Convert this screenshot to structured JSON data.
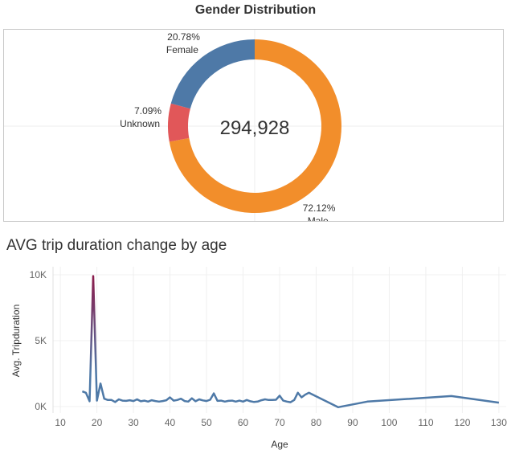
{
  "chart_data": [
    {
      "type": "pie",
      "title": "Gender Distribution",
      "center_label": "294,928",
      "slices": [
        {
          "name": "Male",
          "percent_label": "72.12%",
          "value": 72.12,
          "color": "#F28E2B"
        },
        {
          "name": "Unknown",
          "percent_label": "7.09%",
          "value": 7.09,
          "color": "#E15759"
        },
        {
          "name": "Female",
          "percent_label": "20.78%",
          "value": 20.78,
          "color": "#4E79A7"
        }
      ]
    },
    {
      "type": "line",
      "title": "AVG trip duration change by age",
      "xlabel": "Age",
      "ylabel": "Avg. Tripduration",
      "xlim": [
        8,
        132
      ],
      "ylim": [
        0,
        10000
      ],
      "x_ticks": [
        10,
        20,
        30,
        40,
        50,
        60,
        70,
        80,
        90,
        100,
        110,
        120,
        130
      ],
      "x_tick_labels": [
        "10",
        "20",
        "30",
        "40",
        "50",
        "60",
        "70",
        "80",
        "90",
        "100",
        "110",
        "120",
        "130"
      ],
      "y_ticks": [
        0,
        5000,
        10000
      ],
      "y_tick_labels": [
        "0K",
        "5K",
        "10K"
      ],
      "grid": true,
      "color_low": "#4E79A7",
      "color_high": "#8B1A4A",
      "series": [
        {
          "name": "Avg. Tripduration",
          "x": [
            16,
            17,
            18,
            19,
            20,
            21,
            22,
            23,
            24,
            25,
            26,
            27,
            28,
            29,
            30,
            31,
            32,
            33,
            34,
            35,
            36,
            37,
            38,
            39,
            40,
            41,
            42,
            43,
            44,
            45,
            46,
            47,
            48,
            49,
            50,
            51,
            52,
            53,
            54,
            55,
            56,
            57,
            58,
            59,
            60,
            61,
            62,
            63,
            64,
            65,
            66,
            67,
            68,
            69,
            70,
            71,
            72,
            73,
            74,
            75,
            76,
            77,
            78,
            86,
            94,
            117,
            130
          ],
          "y": [
            1150,
            1050,
            400,
            9900,
            450,
            1750,
            600,
            500,
            500,
            350,
            550,
            450,
            430,
            480,
            420,
            550,
            400,
            450,
            380,
            480,
            420,
            380,
            420,
            480,
            700,
            450,
            500,
            600,
            420,
            380,
            630,
            400,
            550,
            470,
            420,
            520,
            1000,
            430,
            450,
            380,
            430,
            450,
            380,
            450,
            380,
            500,
            400,
            350,
            380,
            480,
            550,
            500,
            500,
            520,
            830,
            450,
            380,
            330,
            500,
            1050,
            700,
            900,
            1050,
            -50,
            380,
            800,
            300
          ]
        }
      ]
    }
  ]
}
